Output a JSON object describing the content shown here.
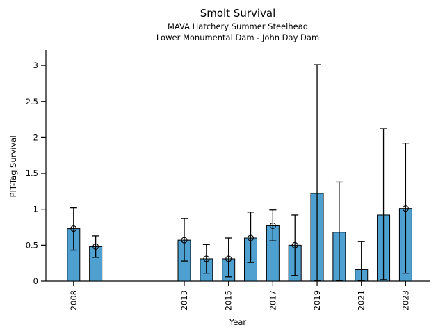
{
  "chart": {
    "title": "Smolt Survival",
    "subtitle1": "MAVA Hatchery Summer Steelhead",
    "subtitle2": "Lower Monumental Dam - John Day Dam",
    "xlabel": "Year",
    "ylabel": "PIT-Tag Survival"
  },
  "chart_data": {
    "type": "bar",
    "title": "Smolt Survival",
    "subtitle": [
      "MAVA Hatchery Summer Steelhead",
      "Lower Monumental Dam - John Day Dam"
    ],
    "xlabel": "Year",
    "ylabel": "PIT-Tag Survival",
    "x_ticks_shown": [
      2008,
      2013,
      2015,
      2017,
      2019,
      2021,
      2023
    ],
    "y_ticks": [
      0,
      0.5,
      1,
      1.5,
      2,
      2.5,
      3
    ],
    "ylim": [
      0,
      3.2
    ],
    "xlim": [
      2006.75,
      2024.1
    ],
    "grid": false,
    "legend": "none",
    "bar_color": "#4da0cf",
    "bar_edge_color": "#000000",
    "error_bar_color": "#000000",
    "marker_style": "open-circle-on-bar-top",
    "points": [
      {
        "year": 2008,
        "value": 0.73,
        "ci_low": 0.43,
        "ci_high": 1.02,
        "marker": true
      },
      {
        "year": 2009,
        "value": 0.48,
        "ci_low": 0.33,
        "ci_high": 0.63,
        "marker": true
      },
      {
        "year": 2013,
        "value": 0.57,
        "ci_low": 0.28,
        "ci_high": 0.87,
        "marker": true
      },
      {
        "year": 2014,
        "value": 0.31,
        "ci_low": 0.11,
        "ci_high": 0.51,
        "marker": true
      },
      {
        "year": 2015,
        "value": 0.31,
        "ci_low": 0.06,
        "ci_high": 0.6,
        "marker": true
      },
      {
        "year": 2016,
        "value": 0.6,
        "ci_low": 0.26,
        "ci_high": 0.96,
        "marker": true
      },
      {
        "year": 2017,
        "value": 0.77,
        "ci_low": 0.56,
        "ci_high": 0.99,
        "marker": true
      },
      {
        "year": 2018,
        "value": 0.5,
        "ci_low": 0.08,
        "ci_high": 0.92,
        "marker": true
      },
      {
        "year": 2019,
        "value": 1.22,
        "ci_low": 0.01,
        "ci_high": 3.01,
        "marker": false
      },
      {
        "year": 2020,
        "value": 0.68,
        "ci_low": 0.01,
        "ci_high": 1.38,
        "marker": false
      },
      {
        "year": 2021,
        "value": 0.16,
        "ci_low": 0.01,
        "ci_high": 0.55,
        "marker": false
      },
      {
        "year": 2022,
        "value": 0.92,
        "ci_low": 0.02,
        "ci_high": 2.12,
        "marker": false
      },
      {
        "year": 2023,
        "value": 1.01,
        "ci_low": 0.11,
        "ci_high": 1.92,
        "marker": true
      }
    ]
  }
}
